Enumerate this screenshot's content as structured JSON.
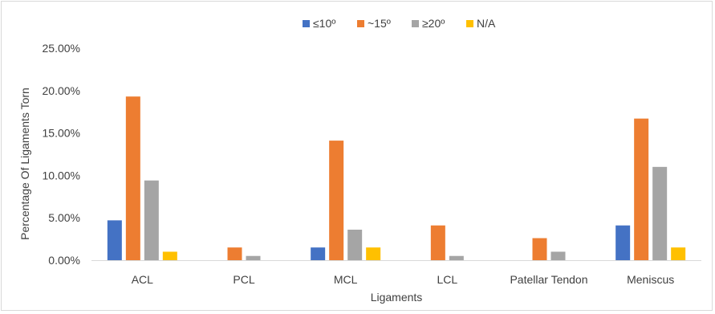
{
  "chart_data": {
    "type": "bar",
    "categories": [
      "ACL",
      "PCL",
      "MCL",
      "LCL",
      "Patellar Tendon",
      "Meniscus"
    ],
    "series": [
      {
        "name": "≤10º",
        "color": "#4472c4",
        "values": [
          4.7,
          0.0,
          1.5,
          0.0,
          0.0,
          4.1
        ]
      },
      {
        "name": "~15º",
        "color": "#ed7d31",
        "values": [
          19.3,
          1.5,
          14.1,
          4.1,
          2.6,
          16.7
        ]
      },
      {
        "name": "≥20º",
        "color": "#a5a5a5",
        "values": [
          9.4,
          0.5,
          3.6,
          0.5,
          1.0,
          11.0
        ]
      },
      {
        "name": "N/A",
        "color": "#ffc000",
        "values": [
          1.0,
          0.0,
          1.5,
          0.0,
          0.0,
          1.5
        ]
      }
    ],
    "xlabel": "Ligaments",
    "ylabel": "Percentage Of Ligaments Torn",
    "ylim": [
      0,
      25
    ],
    "yticks": [
      "0.00%",
      "5.00%",
      "10.00%",
      "15.00%",
      "20.00%",
      "25.00%"
    ],
    "grid": false,
    "legend_position": "top"
  }
}
